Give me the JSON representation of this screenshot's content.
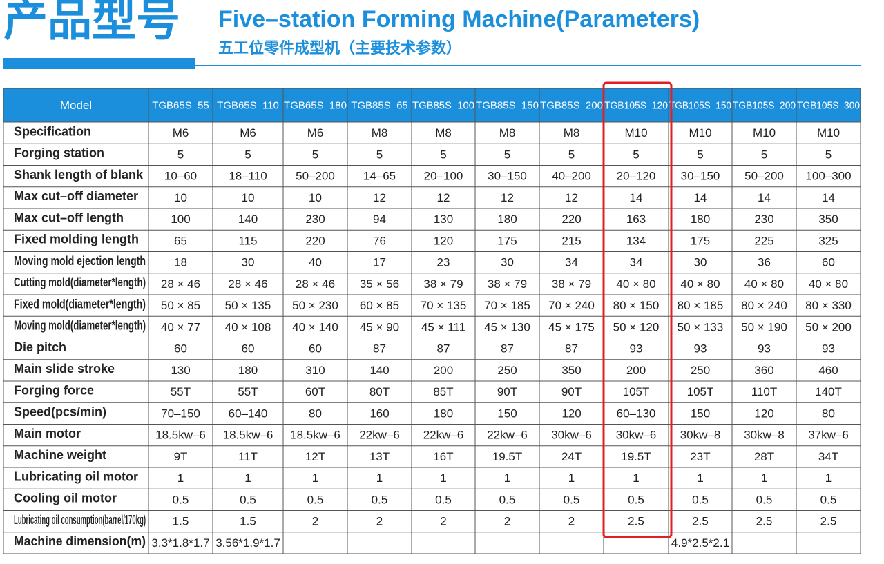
{
  "header": {
    "title_cn": "产品型号",
    "title_en": "Five–station Forming Machine(Parameters)",
    "subtitle_cn": "五工位零件成型机（主要技术参数）"
  },
  "table": {
    "columns": [
      "Model",
      "TGB65S–55",
      "TGB65S–110",
      "TGB65S–180",
      "TGB85S–65",
      "TGB85S–100",
      "TGB85S–150",
      "TGB85S–200",
      "TGB105S–120",
      "TGB105S–150",
      "TGB105S–200",
      "TGB105S–300"
    ],
    "rows": [
      [
        "Specification",
        "M6",
        "M6",
        "M6",
        "M8",
        "M8",
        "M8",
        "M8",
        "M10",
        "M10",
        "M10",
        "M10"
      ],
      [
        "Forging station",
        "5",
        "5",
        "5",
        "5",
        "5",
        "5",
        "5",
        "5",
        "5",
        "5",
        "5"
      ],
      [
        "Shank length of blank",
        "10–60",
        "18–110",
        "50–200",
        "14–65",
        "20–100",
        "30–150",
        "40–200",
        "20–120",
        "30–150",
        "50–200",
        "100–300"
      ],
      [
        "Max cut–off diameter",
        "10",
        "10",
        "10",
        "12",
        "12",
        "12",
        "12",
        "14",
        "14",
        "14",
        "14"
      ],
      [
        "Max cut–off length",
        "100",
        "140",
        "230",
        "94",
        "130",
        "180",
        "220",
        "163",
        "180",
        "230",
        "350"
      ],
      [
        "Fixed molding length",
        "65",
        "115",
        "220",
        "76",
        "120",
        "175",
        "215",
        "134",
        "175",
        "225",
        "325"
      ],
      [
        "Moving mold ejection length",
        "18",
        "30",
        "40",
        "17",
        "23",
        "30",
        "34",
        "34",
        "30",
        "36",
        "60"
      ],
      [
        "Cutting mold(diameter*length)",
        "28 × 46",
        "28 × 46",
        "28 × 46",
        "35 × 56",
        "38 × 79",
        "38 × 79",
        "38 × 79",
        "40 × 80",
        "40 × 80",
        "40 × 80",
        "40 × 80"
      ],
      [
        "Fixed mold(diameter*length)",
        "50 × 85",
        "50 × 135",
        "50 × 230",
        "60 × 85",
        "70 × 135",
        "70 × 185",
        "70 × 240",
        "80 × 150",
        "80 × 185",
        "80 × 240",
        "80 × 330"
      ],
      [
        "Moving mold(diameter*length)",
        "40 × 77",
        "40 × 108",
        "40 × 140",
        "45 × 90",
        "45 × 111",
        "45 × 130",
        "45 × 175",
        "50 × 120",
        "50 × 133",
        "50 × 190",
        "50 × 200"
      ],
      [
        "Die pitch",
        "60",
        "60",
        "60",
        "87",
        "87",
        "87",
        "87",
        "93",
        "93",
        "93",
        "93"
      ],
      [
        "Main slide stroke",
        "130",
        "180",
        "310",
        "140",
        "200",
        "250",
        "350",
        "200",
        "250",
        "360",
        "460"
      ],
      [
        "Forging force",
        "55T",
        "55T",
        "60T",
        "80T",
        "85T",
        "90T",
        "90T",
        "105T",
        "105T",
        "110T",
        "140T"
      ],
      [
        "Speed(pcs/min)",
        "70–150",
        "60–140",
        "80",
        "160",
        "180",
        "150",
        "120",
        "60–130",
        "150",
        "120",
        "80"
      ],
      [
        "Main motor",
        "18.5kw–6",
        "18.5kw–6",
        "18.5kw–6",
        "22kw–6",
        "22kw–6",
        "22kw–6",
        "30kw–6",
        "30kw–6",
        "30kw–8",
        "30kw–8",
        "37kw–6"
      ],
      [
        "Machine weight",
        "9T",
        "11T",
        "12T",
        "13T",
        "16T",
        "19.5T",
        "24T",
        "19.5T",
        "23T",
        "28T",
        "34T"
      ],
      [
        "Lubricating oil motor",
        "1",
        "1",
        "1",
        "1",
        "1",
        "1",
        "1",
        "1",
        "1",
        "1",
        "1"
      ],
      [
        "Cooling oil motor",
        "0.5",
        "0.5",
        "0.5",
        "0.5",
        "0.5",
        "0.5",
        "0.5",
        "0.5",
        "0.5",
        "0.5",
        "0.5"
      ],
      [
        "Lubricating oil consumption(barrel/170kg)",
        "1.5",
        "1.5",
        "2",
        "2",
        "2",
        "2",
        "2",
        "2.5",
        "2.5",
        "2.5",
        "2.5"
      ],
      [
        "Machine dimension(m)",
        "3.3*1.8*1.7",
        "3.56*1.9*1.7",
        null,
        null,
        null,
        null,
        null,
        null,
        "4.9*2.5*2.1",
        null,
        null
      ]
    ]
  }
}
